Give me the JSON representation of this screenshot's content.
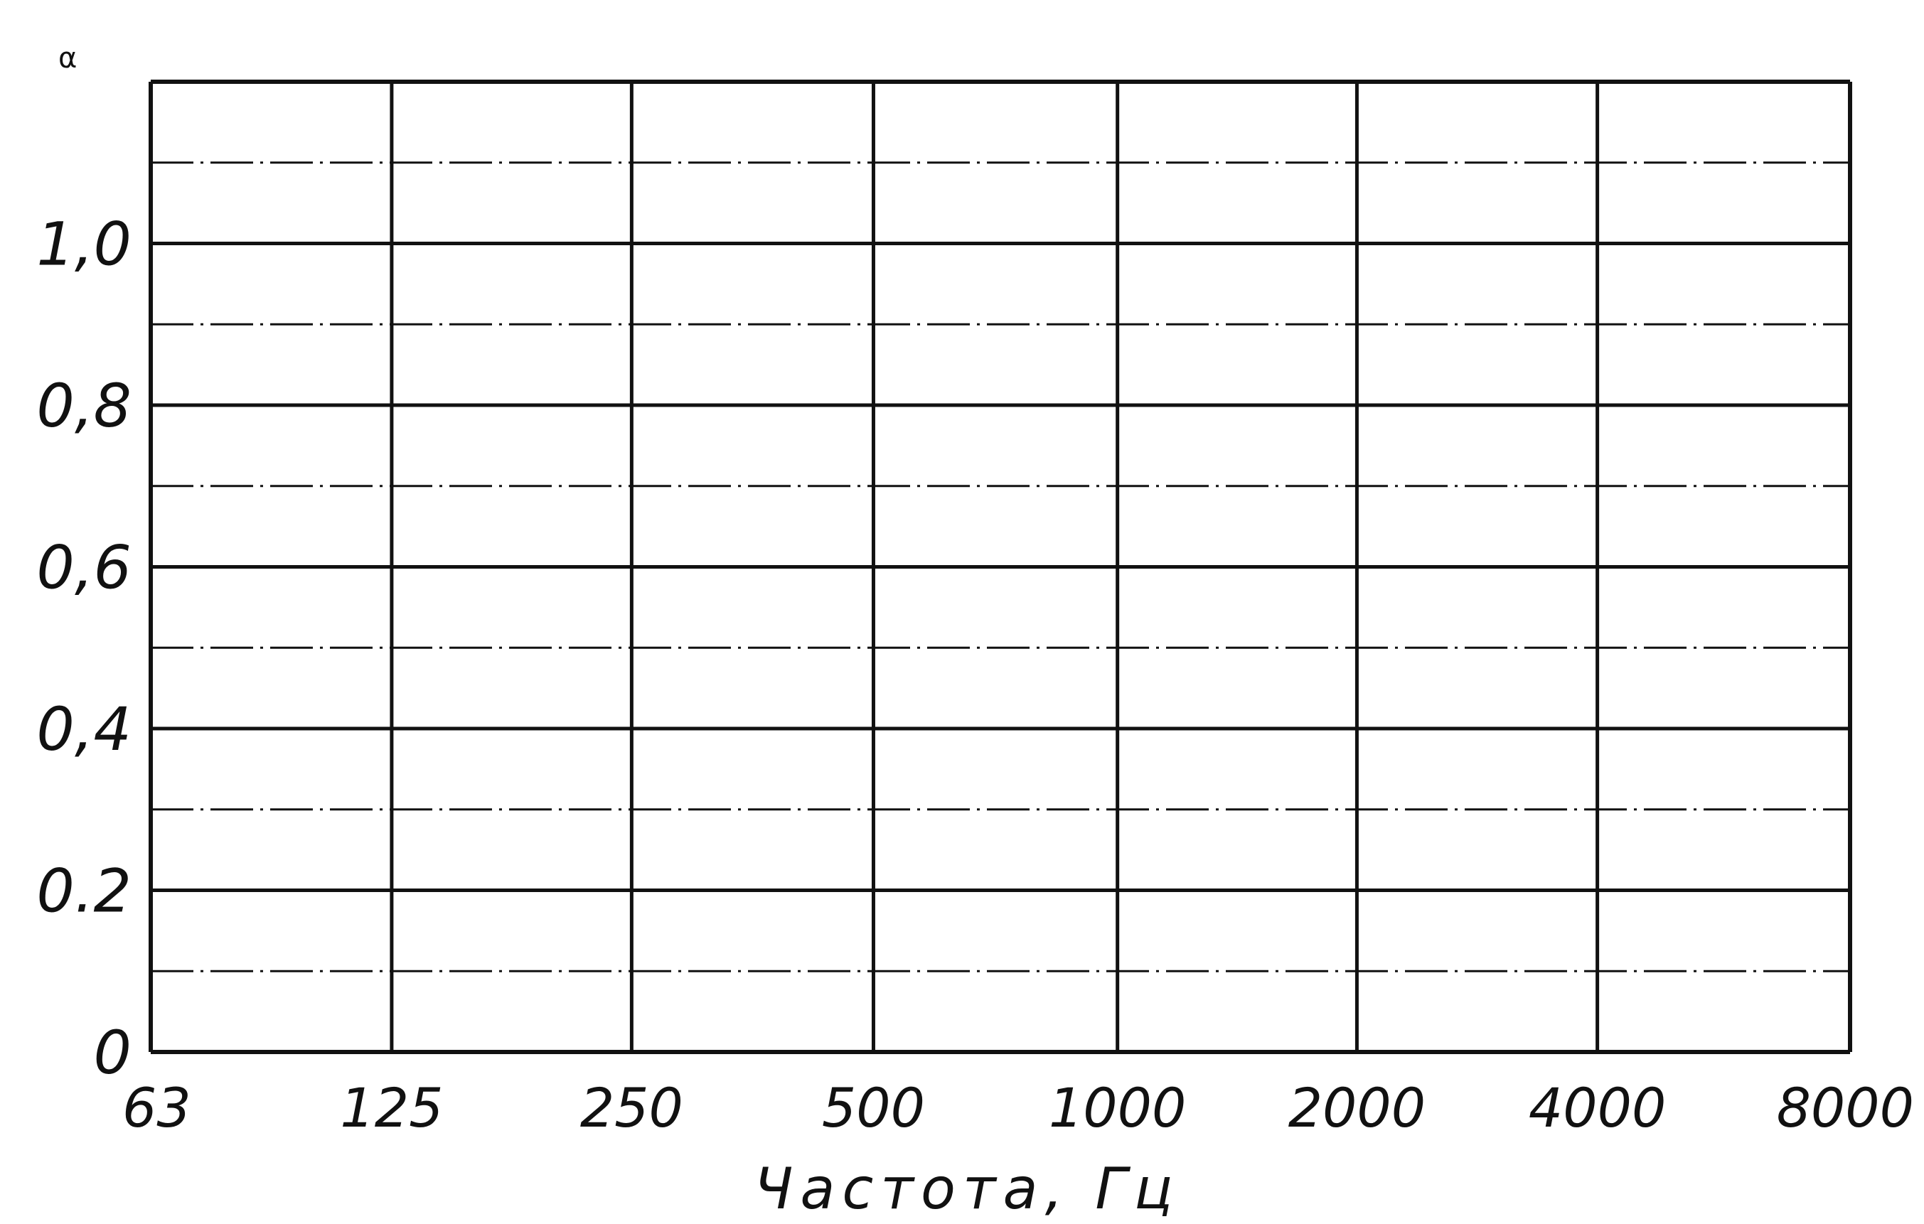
{
  "chart_data": {
    "type": "line",
    "title": "",
    "xlabel": "Частота, Гц",
    "ylabel": "α",
    "categories": [
      "63",
      "125",
      "250",
      "500",
      "1000",
      "2000",
      "4000",
      "8000"
    ],
    "y_ticks": [
      "0",
      "0.2",
      "0,4",
      "0,6",
      "0,8",
      "1,0"
    ],
    "ylim": [
      0,
      1.2
    ],
    "grid": true,
    "series": [],
    "colors": {
      "grid": "#111111",
      "background": "#ffffff"
    }
  }
}
